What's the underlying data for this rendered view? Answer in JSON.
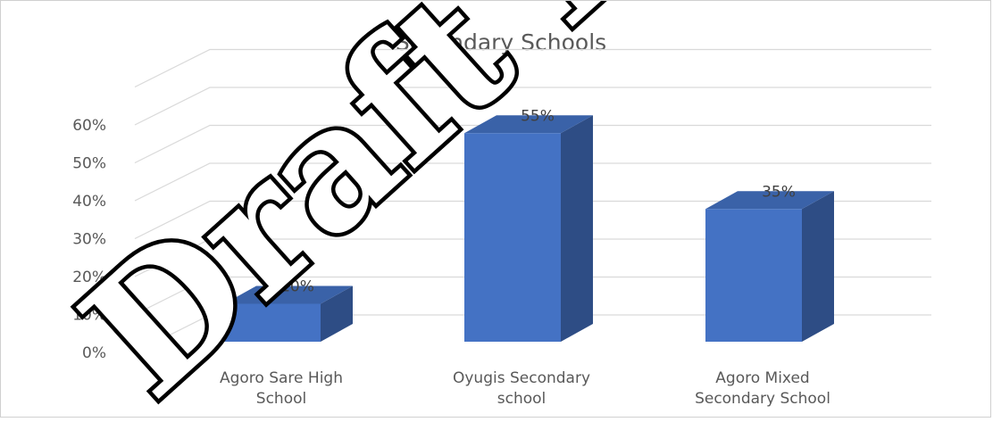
{
  "chart_data": {
    "type": "bar",
    "title": "Secondary Schools",
    "categories": [
      "Agoro Sare High School",
      "Oyugis Secondary school",
      "Agoro Mixed Secondary School"
    ],
    "category_lines": [
      [
        "Agoro Sare High",
        "School"
      ],
      [
        "Oyugis Secondary",
        "school"
      ],
      [
        "Agoro Mixed",
        "Secondary School"
      ]
    ],
    "values": [
      0.1,
      0.55,
      0.35
    ],
    "data_labels": [
      "10%",
      "55%",
      "35%"
    ],
    "y_ticks": [
      "0%",
      "10%",
      "20%",
      "30%",
      "40%",
      "50%",
      "60%"
    ],
    "ylim": [
      0,
      0.7
    ],
    "three_d": true,
    "grid": true,
    "colors": {
      "bar_front": "#4472c4",
      "bar_side": "#2e4d85",
      "bar_top": "#3a62a8"
    }
  },
  "watermark": "Draft Discl"
}
